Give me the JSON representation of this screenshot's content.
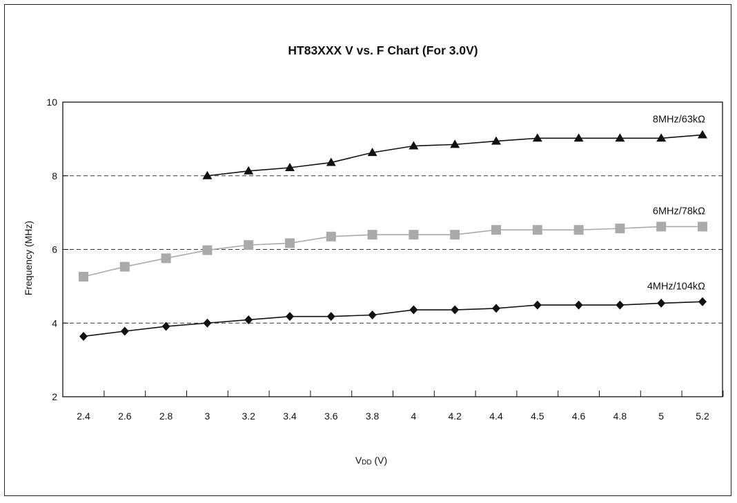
{
  "chart_data": {
    "type": "line",
    "title": "HT83XXX V vs. F Chart (For 3.0V)",
    "xlabel_main": "V",
    "xlabel_sub": "DD",
    "xlabel_tail": " (V)",
    "ylabel": "Frequency (MHz)",
    "ylim": [
      2,
      10
    ],
    "yticks": [
      "2",
      "4",
      "6",
      "8",
      "10"
    ],
    "gridlines_y": [
      4,
      6,
      8
    ],
    "grid_style": "dashed",
    "categories": [
      "2.4",
      "2.6",
      "2.8",
      "3",
      "3.2",
      "3.4",
      "3.6",
      "3.8",
      "4",
      "4.2",
      "4.4",
      "4.5",
      "4.6",
      "4.8",
      "5",
      "5.2"
    ],
    "series": [
      {
        "name": "8MHz/63kΩ",
        "marker": "triangle",
        "color": "#111111",
        "values": [
          null,
          null,
          null,
          8.0,
          8.13,
          8.22,
          8.36,
          8.63,
          8.81,
          8.85,
          8.94,
          9.02,
          9.02,
          9.02,
          9.02,
          9.11
        ]
      },
      {
        "name": "6MHz/78kΩ",
        "marker": "square",
        "color": "#aaaaaa",
        "values": [
          5.26,
          5.53,
          5.76,
          5.98,
          6.12,
          6.17,
          6.35,
          6.4,
          6.4,
          6.4,
          6.53,
          6.53,
          6.53,
          6.57,
          6.62,
          6.62
        ]
      },
      {
        "name": "4MHz/104kΩ",
        "marker": "diamond",
        "color": "#111111",
        "values": [
          3.64,
          3.78,
          3.91,
          4.0,
          4.09,
          4.18,
          4.18,
          4.22,
          4.36,
          4.36,
          4.4,
          4.49,
          4.49,
          4.49,
          4.54,
          4.58
        ]
      }
    ]
  }
}
